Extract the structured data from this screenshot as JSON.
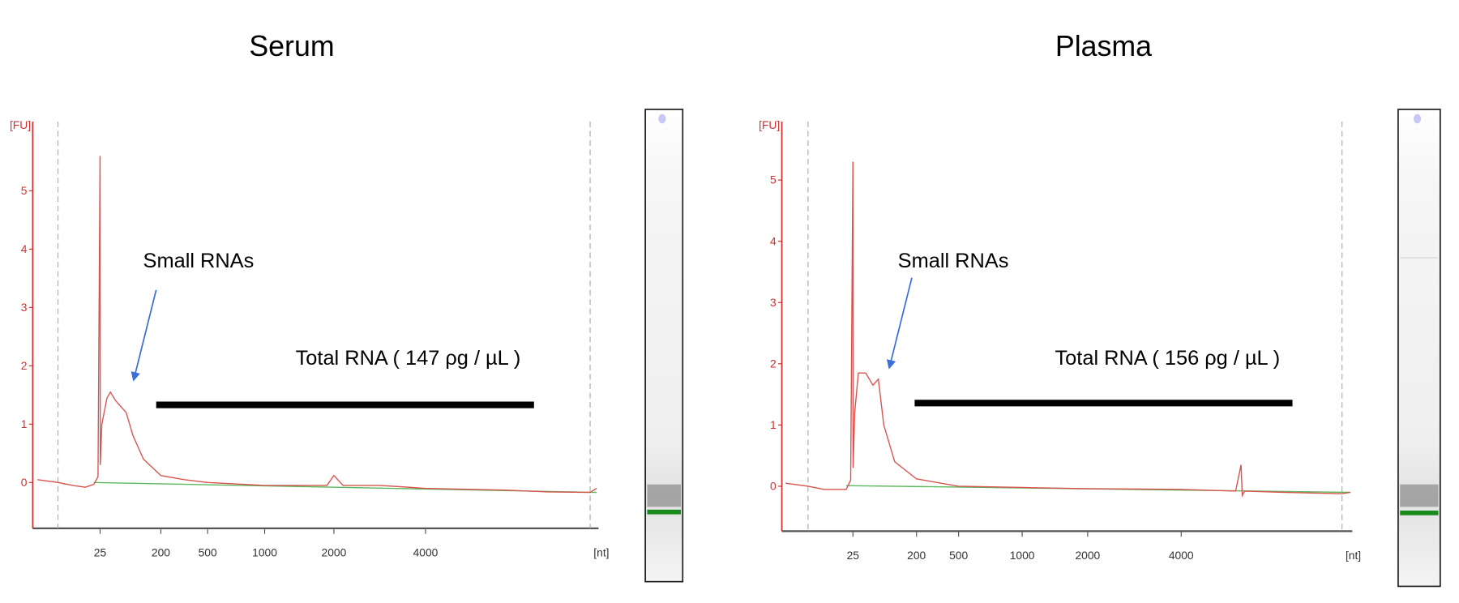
{
  "chart_data": [
    {
      "type": "line",
      "title": "Serum",
      "ylabel": "[FU]",
      "xlabel": "[nt]",
      "ylim": [
        -0.7,
        5.9
      ],
      "yticks": [
        "0",
        "1",
        "2",
        "3",
        "4",
        "5"
      ],
      "xticks": [
        "25",
        "200",
        "500",
        "1000",
        "2000",
        "4000"
      ],
      "annotations": {
        "small_rnas": "Small RNAs",
        "total_rna": "Total RNA ( 147 ρg / µL )"
      },
      "series": [
        {
          "name": "sample trace",
          "color": "#d9534f",
          "points": [
            [
              1,
              0.05
            ],
            [
              5,
              0
            ],
            [
              12,
              -0.05
            ],
            [
              18,
              -0.08
            ],
            [
              22,
              -0.03
            ],
            [
              24,
              0.1
            ],
            [
              25,
              5.6
            ],
            [
              25.6,
              0.3
            ],
            [
              30,
              1.0
            ],
            [
              45,
              1.45
            ],
            [
              55,
              1.55
            ],
            [
              70,
              1.4
            ],
            [
              100,
              1.2
            ],
            [
              120,
              0.8
            ],
            [
              150,
              0.4
            ],
            [
              200,
              0.12
            ],
            [
              350,
              0.05
            ],
            [
              500,
              0
            ],
            [
              1000,
              -0.05
            ],
            [
              1900,
              -0.05
            ],
            [
              2000,
              0.12
            ],
            [
              2200,
              -0.05
            ],
            [
              3000,
              -0.05
            ],
            [
              4000,
              -0.1
            ],
            [
              8000,
              -0.13
            ],
            [
              12000,
              -0.16
            ],
            [
              16000,
              -0.17
            ],
            [
              18000,
              -0.1
            ]
          ]
        },
        {
          "name": "baseline",
          "color": "#5cb85c",
          "points": [
            [
              22,
              0
            ],
            [
              18000,
              -0.17
            ]
          ]
        }
      ],
      "gel": {
        "marker_color": "#1a8a1a",
        "band_color": "#8a8a8a",
        "well_color": "#c8c8f5"
      }
    },
    {
      "type": "line",
      "title": "Plasma",
      "ylabel": "[FU]",
      "xlabel": "[nt]",
      "ylim": [
        -0.75,
        5.9
      ],
      "yticks": [
        "0",
        "1",
        "2",
        "3",
        "4",
        "5"
      ],
      "xticks": [
        "25",
        "200",
        "500",
        "1000",
        "2000",
        "4000"
      ],
      "annotations": {
        "small_rnas": "Small RNAs",
        "total_rna": "Total RNA ( 156 ρg / µL )"
      },
      "series": [
        {
          "name": "sample trace",
          "color": "#d9534f",
          "points": [
            [
              1,
              0.05
            ],
            [
              5,
              0
            ],
            [
              12,
              -0.05
            ],
            [
              22,
              -0.05
            ],
            [
              24,
              0.1
            ],
            [
              25,
              5.3
            ],
            [
              25.6,
              0.3
            ],
            [
              30,
              1.2
            ],
            [
              40,
              1.85
            ],
            [
              60,
              1.85
            ],
            [
              80,
              1.65
            ],
            [
              95,
              1.75
            ],
            [
              110,
              1.0
            ],
            [
              140,
              0.4
            ],
            [
              200,
              0.12
            ],
            [
              500,
              0
            ],
            [
              1000,
              -0.02
            ],
            [
              2000,
              -0.04
            ],
            [
              4000,
              -0.05
            ],
            [
              6000,
              -0.08
            ],
            [
              6200,
              0.35
            ],
            [
              6300,
              -0.15
            ],
            [
              6500,
              -0.08
            ],
            [
              10000,
              -0.1
            ],
            [
              16000,
              -0.12
            ],
            [
              18000,
              -0.1
            ]
          ]
        },
        {
          "name": "baseline",
          "color": "#5cb85c",
          "points": [
            [
              22,
              0.01
            ],
            [
              18000,
              -0.1
            ]
          ]
        }
      ],
      "gel": {
        "marker_color": "#1a8a1a",
        "band_color": "#8a8a8a",
        "well_color": "#c8c8f5"
      }
    }
  ]
}
